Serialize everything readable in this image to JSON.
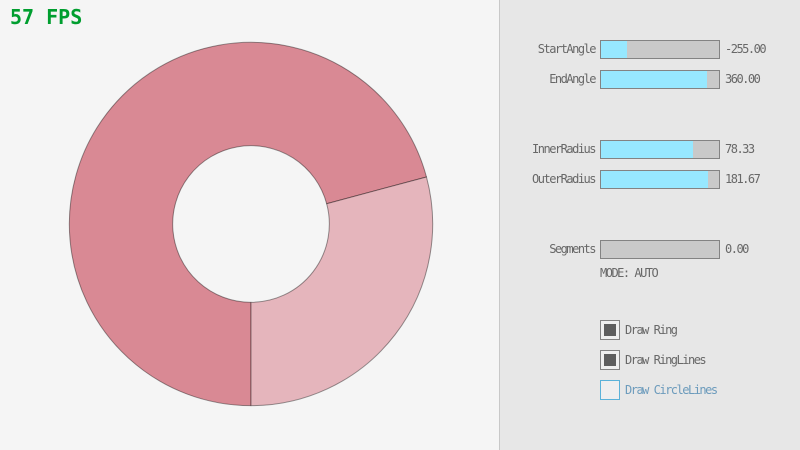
{
  "fps": {
    "text": "57 FPS",
    "color": "#009E2F"
  },
  "ring": {
    "start_angle": -255,
    "end_angle": 360,
    "inner_radius": 78.33,
    "outer_radius": 181.67,
    "color_single_pass": "#E5B5BC",
    "color_overlap": "#D98994",
    "outline_color": "rgba(0,0,0,0.4)"
  },
  "panel": {
    "sliders": [
      {
        "label": "StartAngle",
        "value": "-255.00",
        "fill_pct": 21.7
      },
      {
        "label": "EndAngle",
        "value": "360.00",
        "fill_pct": 90.0
      },
      {
        "label": "InnerRadius",
        "value": "78.33",
        "fill_pct": 78.3
      },
      {
        "label": "OuterRadius",
        "value": "181.67",
        "fill_pct": 90.8
      },
      {
        "label": "Segments",
        "value": "0.00",
        "fill_pct": 0
      }
    ],
    "mode_text": "MODE: AUTO",
    "checkboxes": [
      {
        "label": "Draw Ring",
        "checked": true,
        "focused": false
      },
      {
        "label": "Draw RingLines",
        "checked": true,
        "focused": false
      },
      {
        "label": "Draw CircleLines",
        "checked": false,
        "focused": true
      }
    ],
    "colors": {
      "panel_bg": "#E7E7E7",
      "canvas_bg": "#F5F5F5",
      "divider": "#C8C8C8",
      "slider_border": "#838383",
      "slider_track": "#C9C9C9",
      "slider_fill": "#97E8FF",
      "text": "#686868",
      "focused_border": "#5BB2D9",
      "focused_text": "#6C9BBC",
      "check_mark": "#5E5E5E"
    }
  }
}
